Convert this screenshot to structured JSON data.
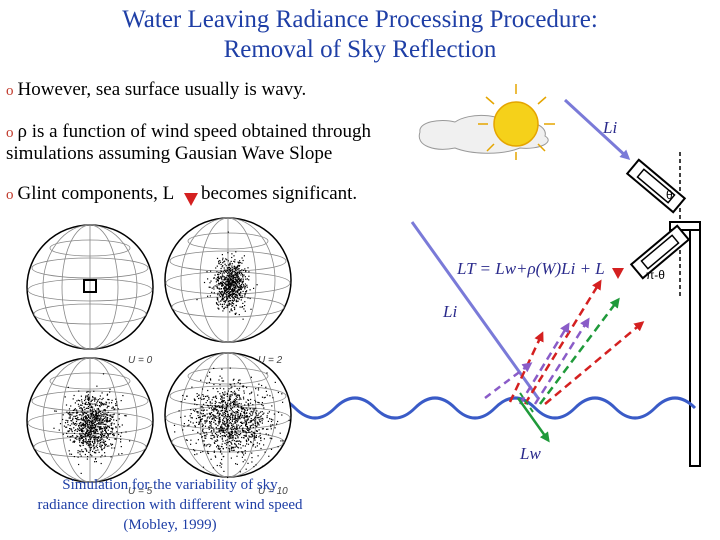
{
  "title": {
    "line1": "Water Leaving Radiance Processing Procedure:",
    "line2": "Removal of Sky Reflection"
  },
  "bullets": {
    "b1": "However, sea surface usually is wavy.",
    "b2": "ρ is a function of wind speed obtained through",
    "b2b": "simulations assuming Gausian Wave Slope",
    "b3_pre": "Glint components, L",
    "b3_post": "becomes significant.",
    "marker": "o"
  },
  "simulation": {
    "panel_labels": [
      "U = 0",
      "U = 2",
      "U = 5",
      "U = 10"
    ],
    "caption_lines": [
      "Simulation for the variability of sky",
      "radiance direction with different wind speed",
      "(Mobley, 1999)"
    ]
  },
  "diagram": {
    "li_top": "Li",
    "li_mid": "Li",
    "lw_label": "Lw",
    "equation": "LT = Lw+ρ(W)Li + L",
    "theta": "θ",
    "pi_theta": "π-θ",
    "colors": {
      "title": "#1f3fa6",
      "wave": "#3a5bc7",
      "ray_sky": "#7a7ad8",
      "glint": "#d42020",
      "water_leaving": "#1f9a3a",
      "sun": "#f5d11a"
    }
  }
}
